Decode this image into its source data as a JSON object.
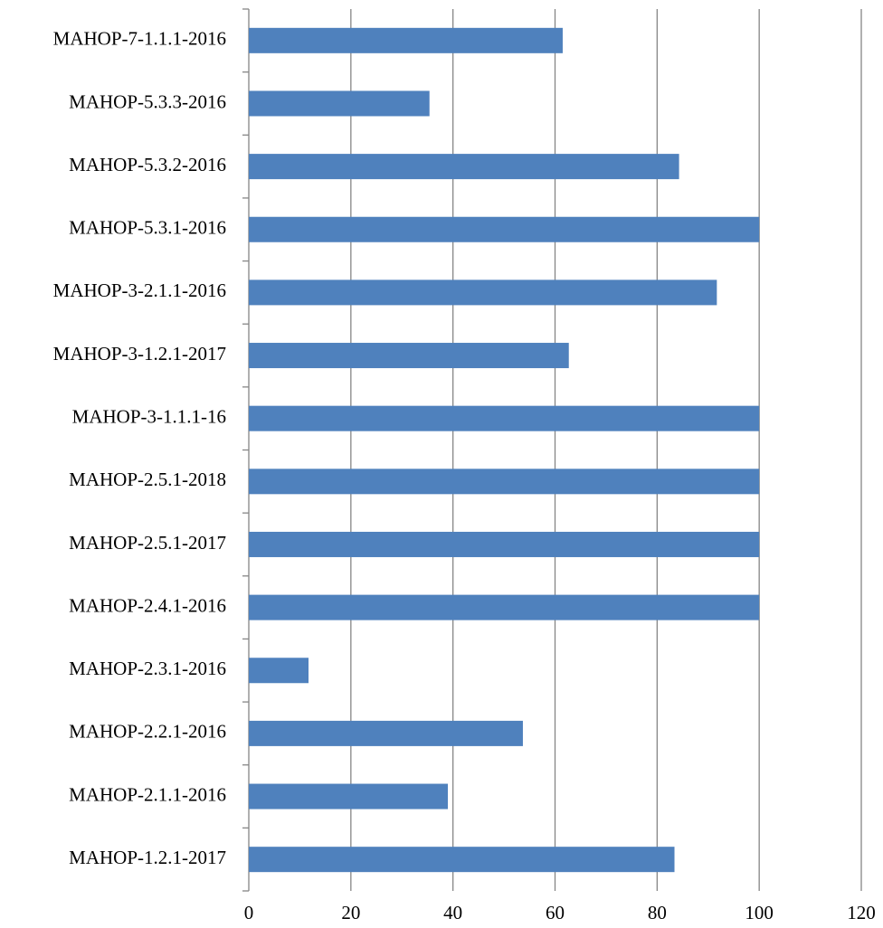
{
  "chart_data": {
    "type": "bar",
    "orientation": "horizontal",
    "categories": [
      "MAHOP-1.2.1-2017",
      "MAHOP-2.1.1-2016",
      "MAHOP-2.2.1-2016",
      "MAHOP-2.3.1-2016",
      "MAHOP-2.4.1-2016",
      "MAHOP-2.5.1-2017",
      "MAHOP-2.5.1-2018",
      "MAHOP-3-1.1.1-16",
      "MAHOP-3-1.2.1-2017",
      "MAHOP-3-2.1.1-2016",
      "MAHOP-5.3.1-2016",
      "MAHOP-5.3.2-2016",
      "MAHOP-5.3.3-2016",
      "MAHOP-7-1.1.1-2016"
    ],
    "values": [
      83.4,
      39,
      53.7,
      11.7,
      100,
      100,
      100,
      100,
      62.7,
      91.7,
      100,
      84.3,
      35.4,
      61.5
    ],
    "color": "#4f81bd",
    "xlim": [
      0,
      120
    ],
    "xticks": [
      0,
      20,
      40,
      60,
      80,
      100,
      120
    ],
    "grid": true
  }
}
